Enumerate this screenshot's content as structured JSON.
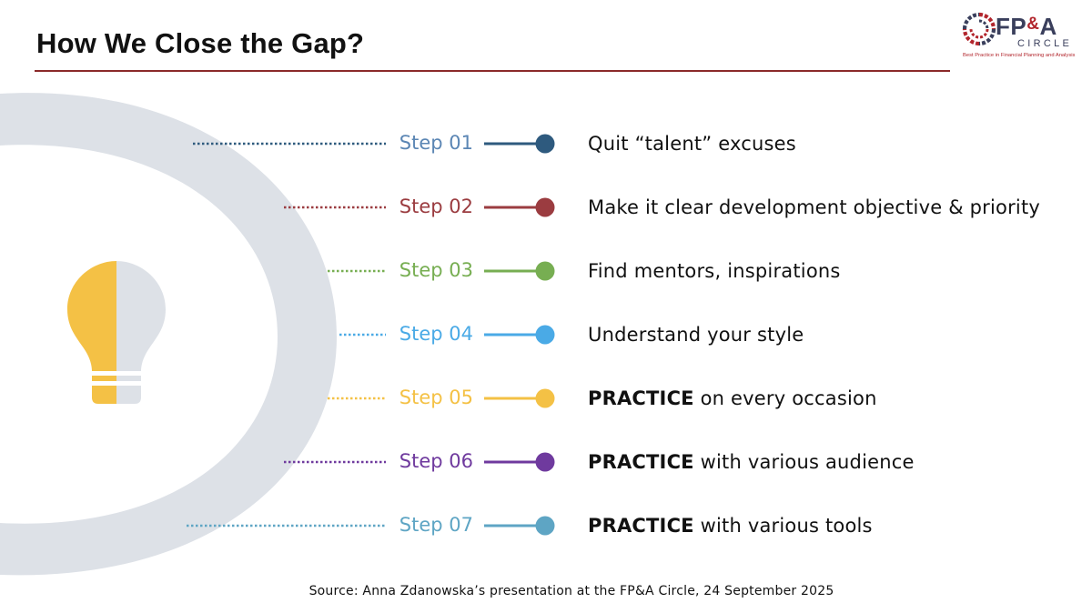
{
  "header": {
    "title": "How We Close the Gap?"
  },
  "logo": {
    "name_part1": "FP",
    "name_amp": "&",
    "name_part2": "A",
    "sub": "CIRCLE",
    "tagline": "Best Practice in Financial Planning and Analysis"
  },
  "steps": [
    {
      "label": "Step 01",
      "emphasis": "",
      "text": "Quit “talent” excuses",
      "color": "#2e5a7e",
      "label_color": "#5b86b4"
    },
    {
      "label": "Step 02",
      "emphasis": "",
      "text": "Make it clear development objective & priority",
      "color": "#9b3c40",
      "label_color": "#9b3c40"
    },
    {
      "label": "Step 03",
      "emphasis": "",
      "text": "Find mentors, inspirations",
      "color": "#77ae52",
      "label_color": "#77ae52"
    },
    {
      "label": "Step 04",
      "emphasis": "",
      "text": "Understand your style",
      "color": "#4aaae6",
      "label_color": "#4aaae6"
    },
    {
      "label": "Step 05",
      "emphasis": "PRACTICE",
      "text": " on every occasion",
      "color": "#f4c145",
      "label_color": "#f4c145"
    },
    {
      "label": "Step 06",
      "emphasis": "PRACTICE",
      "text": " with various audience",
      "color": "#6f3a9e",
      "label_color": "#6f3a9e"
    },
    {
      "label": "Step 07",
      "emphasis": "PRACTICE",
      "text": " with various tools",
      "color": "#5ea5c4",
      "label_color": "#5ea5c4"
    }
  ],
  "footer": {
    "source": "Source: Anna Zdanowska’s presentation at the FP&A Circle, 24 September 2025"
  },
  "colors": {
    "rule": "#8b2a2a",
    "arc": "#dde1e7",
    "bulb_yellow": "#f4c145",
    "bulb_grey": "#dde1e7"
  },
  "icons": {
    "bulb": "lightbulb-icon",
    "logo_mark": "swirl-logo-icon"
  }
}
